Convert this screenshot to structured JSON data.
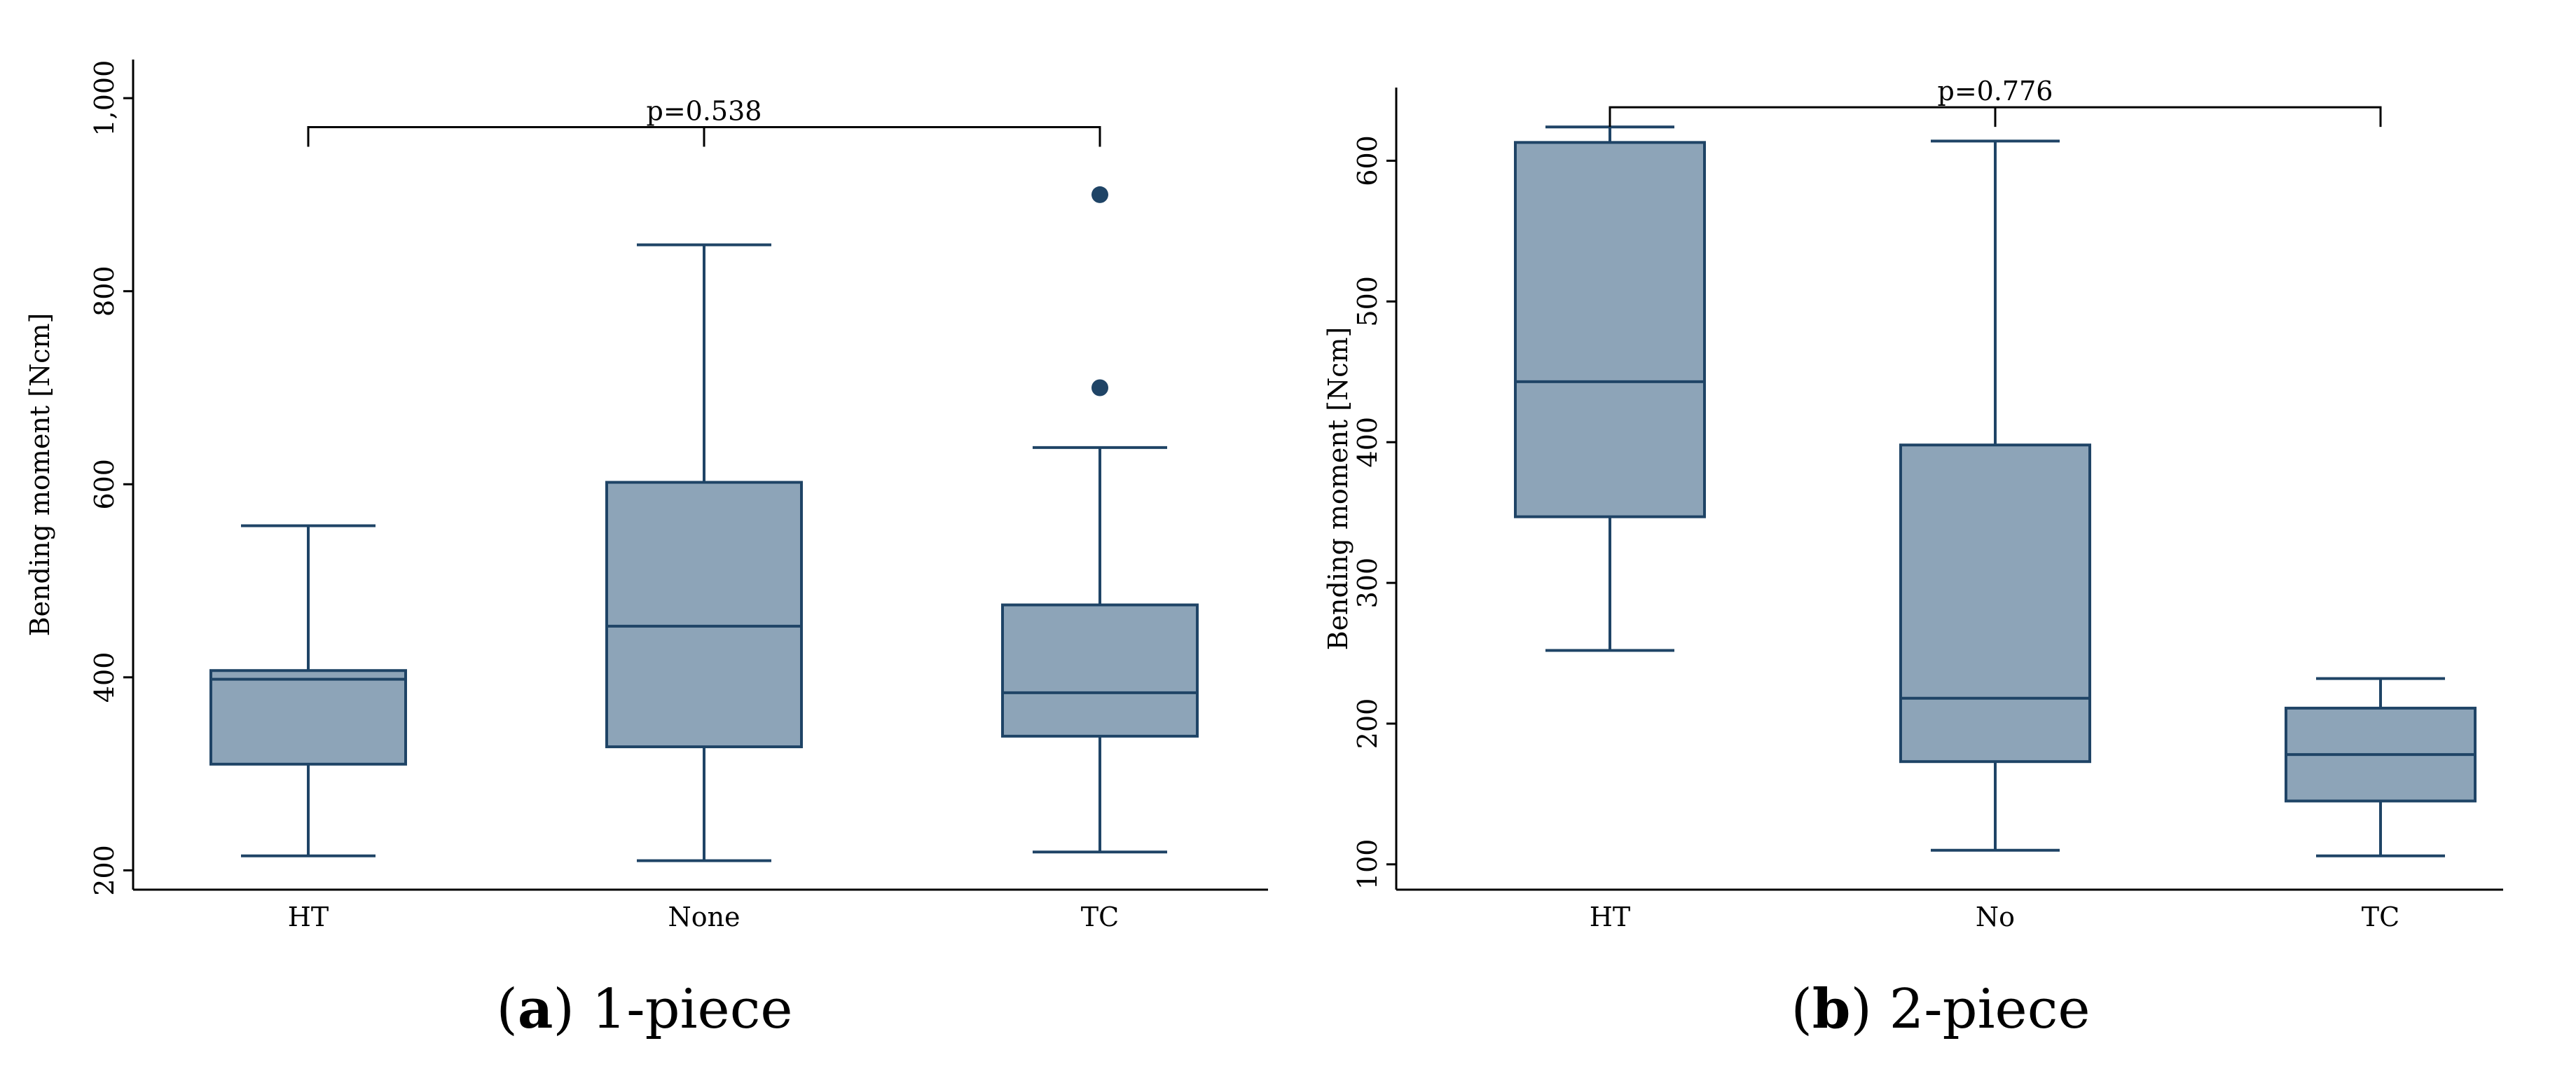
{
  "chart_data": [
    {
      "type": "box",
      "caption_letter": "a",
      "caption_text": "1-piece",
      "ylabel": "Bending moment [Ncm]",
      "xlabel": "",
      "ylim": [
        180,
        1040
      ],
      "yticks": [
        200,
        400,
        600,
        800,
        1000
      ],
      "yticklabels": [
        "200",
        "400",
        "600",
        "800",
        "1,000"
      ],
      "categories": [
        "HT",
        "None",
        "TC"
      ],
      "boxes": [
        {
          "category": "HT",
          "whisker_low": 215,
          "q1": 310,
          "median": 398,
          "q3": 407,
          "whisker_high": 557,
          "outliers": []
        },
        {
          "category": "None",
          "whisker_low": 210,
          "q1": 328,
          "median": 453,
          "q3": 602,
          "whisker_high": 848,
          "outliers": []
        },
        {
          "category": "TC",
          "whisker_low": 219,
          "q1": 339,
          "median": 384,
          "q3": 475,
          "whisker_high": 638,
          "outliers": [
            700,
            900
          ]
        }
      ],
      "significance": {
        "label": "p=0.538",
        "y": 970,
        "from": "HT",
        "to": "TC",
        "mid": "None"
      },
      "colors": {
        "box_fill": "#8da4b8",
        "box_stroke": "#1f4466"
      }
    },
    {
      "type": "box",
      "caption_letter": "b",
      "caption_text": "2-piece",
      "ylabel": "Bending moment [Ncm]",
      "xlabel": "",
      "ylim": [
        82,
        652
      ],
      "yticks": [
        100,
        200,
        300,
        400,
        500,
        600
      ],
      "yticklabels": [
        "100",
        "200",
        "300",
        "400",
        "500",
        "600"
      ],
      "categories": [
        "HT",
        "No",
        "TC"
      ],
      "boxes": [
        {
          "category": "HT",
          "whisker_low": 252,
          "q1": 347,
          "median": 443,
          "q3": 613,
          "whisker_high": 624,
          "outliers": []
        },
        {
          "category": "No",
          "whisker_low": 110,
          "q1": 173,
          "median": 218,
          "q3": 398,
          "whisker_high": 614,
          "outliers": []
        },
        {
          "category": "TC",
          "whisker_low": 106,
          "q1": 145,
          "median": 178,
          "q3": 211,
          "whisker_high": 232,
          "outliers": []
        }
      ],
      "significance": {
        "label": "p=0.776",
        "y": 638,
        "from": "HT",
        "to": "TC",
        "mid": "No"
      },
      "colors": {
        "box_fill": "#8da4b8",
        "box_stroke": "#1f4466"
      }
    }
  ]
}
